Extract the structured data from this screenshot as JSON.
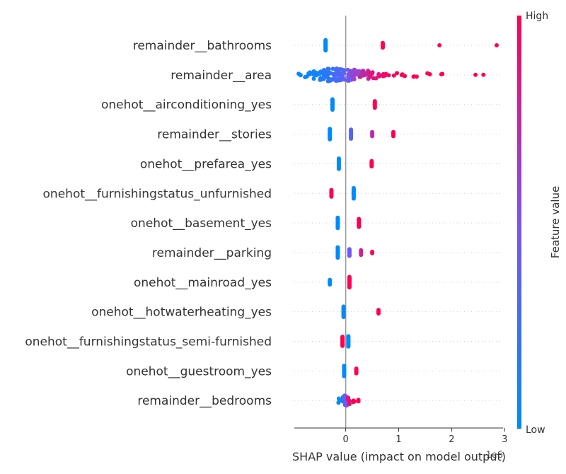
{
  "chart_data": {
    "type": "scatter",
    "subtype": "shap-beeswarm",
    "xlabel": "SHAP value (impact on model output)",
    "x_offset_label": "1e6",
    "xlim": [
      -0.97,
      2.97
    ],
    "x_ticks": [
      0,
      1,
      2,
      3
    ],
    "zero_line": true,
    "colorbar": {
      "title": "Feature value",
      "high_label": "High",
      "low_label": "Low",
      "low_color": "#008bfb",
      "mid_color": "#7c52f2",
      "high_color": "#ff0052"
    },
    "features": [
      {
        "name": "remainder__bathrooms",
        "clusters": [
          {
            "x": -0.38,
            "c": 0.0,
            "n": 14,
            "w": 0.0
          },
          {
            "x": 0.7,
            "c": 1.0,
            "n": 5,
            "w": 0.0
          },
          {
            "x": 1.77,
            "c": 1.0,
            "n": 1,
            "w": 0.0
          },
          {
            "x": 2.85,
            "c": 1.0,
            "n": 1,
            "w": 0.0
          }
        ]
      },
      {
        "name": "remainder__area",
        "clusters": [
          {
            "x": -0.85,
            "c": 0.05,
            "n": 3,
            "w": 0.05
          },
          {
            "x": -0.7,
            "c": 0.05,
            "n": 6,
            "w": 0.08
          },
          {
            "x": -0.55,
            "c": 0.08,
            "n": 10,
            "w": 0.08
          },
          {
            "x": -0.4,
            "c": 0.12,
            "n": 18,
            "w": 0.1
          },
          {
            "x": -0.25,
            "c": 0.2,
            "n": 22,
            "w": 0.1
          },
          {
            "x": -0.1,
            "c": 0.3,
            "n": 22,
            "w": 0.1
          },
          {
            "x": 0.05,
            "c": 0.45,
            "n": 18,
            "w": 0.1
          },
          {
            "x": 0.2,
            "c": 0.6,
            "n": 16,
            "w": 0.1
          },
          {
            "x": 0.35,
            "c": 0.75,
            "n": 12,
            "w": 0.1
          },
          {
            "x": 0.55,
            "c": 0.88,
            "n": 9,
            "w": 0.12
          },
          {
            "x": 0.8,
            "c": 0.95,
            "n": 6,
            "w": 0.12
          },
          {
            "x": 1.05,
            "c": 1.0,
            "n": 4,
            "w": 0.1
          },
          {
            "x": 1.3,
            "c": 1.0,
            "n": 3,
            "w": 0.08
          },
          {
            "x": 1.55,
            "c": 1.0,
            "n": 2,
            "w": 0.05
          },
          {
            "x": 1.85,
            "c": 1.0,
            "n": 2,
            "w": 0.05
          },
          {
            "x": 2.45,
            "c": 1.0,
            "n": 1,
            "w": 0.0
          },
          {
            "x": 2.6,
            "c": 1.0,
            "n": 1,
            "w": 0.0
          }
        ]
      },
      {
        "name": "onehot__airconditioning_yes",
        "clusters": [
          {
            "x": -0.25,
            "c": 0.0,
            "n": 14,
            "w": 0.0
          },
          {
            "x": 0.55,
            "c": 1.0,
            "n": 8,
            "w": 0.0
          }
        ]
      },
      {
        "name": "remainder__stories",
        "clusters": [
          {
            "x": -0.3,
            "c": 0.0,
            "n": 14,
            "w": 0.0
          },
          {
            "x": 0.1,
            "c": 0.35,
            "n": 12,
            "w": 0.0
          },
          {
            "x": 0.5,
            "c": 0.75,
            "n": 4,
            "w": 0.0
          },
          {
            "x": 0.9,
            "c": 1.0,
            "n": 4,
            "w": 0.0
          }
        ]
      },
      {
        "name": "onehot__prefarea_yes",
        "clusters": [
          {
            "x": -0.13,
            "c": 0.0,
            "n": 14,
            "w": 0.0
          },
          {
            "x": 0.49,
            "c": 1.0,
            "n": 6,
            "w": 0.0
          }
        ]
      },
      {
        "name": "onehot__furnishingstatus_unfurnished",
        "clusters": [
          {
            "x": -0.27,
            "c": 1.0,
            "n": 8,
            "w": 0.0
          },
          {
            "x": 0.15,
            "c": 0.0,
            "n": 14,
            "w": 0.0
          }
        ]
      },
      {
        "name": "onehot__basement_yes",
        "clusters": [
          {
            "x": -0.15,
            "c": 0.0,
            "n": 14,
            "w": 0.0
          },
          {
            "x": 0.25,
            "c": 1.0,
            "n": 10,
            "w": 0.0
          }
        ]
      },
      {
        "name": "remainder__parking",
        "clusters": [
          {
            "x": -0.15,
            "c": 0.0,
            "n": 14,
            "w": 0.0
          },
          {
            "x": 0.07,
            "c": 0.45,
            "n": 8,
            "w": 0.0
          },
          {
            "x": 0.29,
            "c": 0.8,
            "n": 5,
            "w": 0.0
          },
          {
            "x": 0.5,
            "c": 1.0,
            "n": 2,
            "w": 0.0
          }
        ]
      },
      {
        "name": "onehot__mainroad_yes",
        "clusters": [
          {
            "x": -0.3,
            "c": 0.0,
            "n": 5,
            "w": 0.0
          },
          {
            "x": 0.07,
            "c": 1.0,
            "n": 14,
            "w": 0.0
          }
        ]
      },
      {
        "name": "onehot__hotwaterheating_yes",
        "clusters": [
          {
            "x": -0.04,
            "c": 0.0,
            "n": 14,
            "w": 0.0
          },
          {
            "x": 0.62,
            "c": 1.0,
            "n": 3,
            "w": 0.0
          }
        ]
      },
      {
        "name": "onehot__furnishingstatus_semi-furnished",
        "clusters": [
          {
            "x": -0.06,
            "c": 1.0,
            "n": 12,
            "w": 0.0
          },
          {
            "x": 0.05,
            "c": 0.0,
            "n": 14,
            "w": 0.0
          }
        ]
      },
      {
        "name": "onehot__guestroom_yes",
        "clusters": [
          {
            "x": -0.03,
            "c": 0.0,
            "n": 14,
            "w": 0.0
          },
          {
            "x": 0.2,
            "c": 1.0,
            "n": 5,
            "w": 0.0
          }
        ]
      },
      {
        "name": "remainder__bedrooms",
        "clusters": [
          {
            "x": -0.13,
            "c": 0.0,
            "n": 3,
            "w": 0.02
          },
          {
            "x": -0.05,
            "c": 0.05,
            "n": 8,
            "w": 0.03
          },
          {
            "x": 0.0,
            "c": 0.45,
            "n": 14,
            "w": 0.03
          },
          {
            "x": 0.07,
            "c": 0.9,
            "n": 10,
            "w": 0.03
          },
          {
            "x": 0.15,
            "c": 1.0,
            "n": 4,
            "w": 0.02
          },
          {
            "x": 0.24,
            "c": 1.0,
            "n": 2,
            "w": 0.0
          }
        ]
      }
    ]
  }
}
